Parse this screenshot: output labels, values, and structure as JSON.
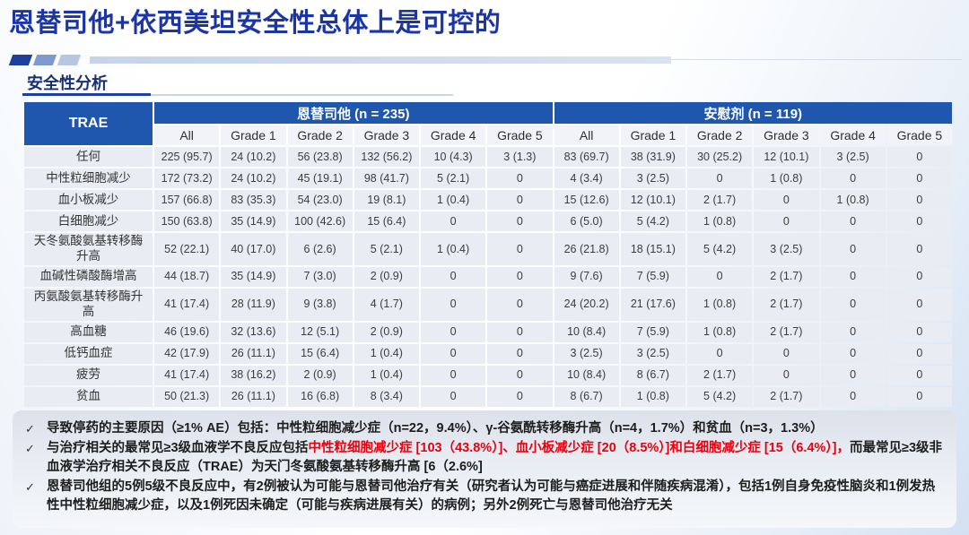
{
  "slide": {
    "title": "恩替司他+依西美坦安全性总体上是可控的",
    "section_title": "安全性分析"
  },
  "colors": {
    "title_blue": "#1c35a5",
    "table_header_blue": "#2057ae",
    "row_background": "#e9ecf3",
    "subheader_background": "#f1f3f8",
    "note_red": "#e8000f",
    "notes_panel_gray": "#e2e6ee"
  },
  "table": {
    "corner_label": "TRAE",
    "groups": [
      {
        "label": "恩替司他 (n = 235)"
      },
      {
        "label": "安慰剂 (n = 119)"
      }
    ],
    "sub_headers": [
      "All",
      "Grade 1",
      "Grade 2",
      "Grade 3",
      "Grade 4",
      "Grade 5"
    ],
    "rows": [
      {
        "label": "任何",
        "values": [
          "225 (95.7)",
          "24 (10.2)",
          "56 (23.8)",
          "132 (56.2)",
          "10 (4.3)",
          "3 (1.3)",
          "83 (69.7)",
          "38 (31.9)",
          "30 (25.2)",
          "12 (10.1)",
          "3 (2.5)",
          "0"
        ]
      },
      {
        "label": "中性粒细胞减少",
        "values": [
          "172 (73.2)",
          "24 (10.2)",
          "45 (19.1)",
          "98 (41.7)",
          "5 (2.1)",
          "0",
          "4 (3.4)",
          "3 (2.5)",
          "0",
          "1 (0.8)",
          "0",
          "0"
        ]
      },
      {
        "label": "血小板减少",
        "values": [
          "157 (66.8)",
          "83 (35.3)",
          "54 (23.0)",
          "19 (8.1)",
          "1 (0.4)",
          "0",
          "15 (12.6)",
          "12 (10.1)",
          "2 (1.7)",
          "0",
          "1 (0.8)",
          "0"
        ]
      },
      {
        "label": "白细胞减少",
        "values": [
          "150 (63.8)",
          "35 (14.9)",
          "100 (42.6)",
          "15 (6.4)",
          "0",
          "0",
          "6 (5.0)",
          "5 (4.2)",
          "1 (0.8)",
          "0",
          "0",
          "0"
        ]
      },
      {
        "label": "天冬氨酸氨基转移酶升高",
        "values": [
          "52 (22.1)",
          "40 (17.0)",
          "6 (2.6)",
          "5 (2.1)",
          "1 (0.4)",
          "0",
          "26 (21.8)",
          "18 (15.1)",
          "5 (4.2)",
          "3 (2.5)",
          "0",
          "0"
        ]
      },
      {
        "label": "血碱性磷酸酶增高",
        "values": [
          "44 (18.7)",
          "35 (14.9)",
          "7 (3.0)",
          "2 (0.9)",
          "0",
          "0",
          "9 (7.6)",
          "7 (5.9)",
          "0",
          "2 (1.7)",
          "0",
          "0"
        ]
      },
      {
        "label": "丙氨酸氨基转移酶升高",
        "values": [
          "41 (17.4)",
          "28 (11.9)",
          "9 (3.8)",
          "4 (1.7)",
          "0",
          "0",
          "24 (20.2)",
          "21 (17.6)",
          "1 (0.8)",
          "2 (1.7)",
          "0",
          "0"
        ]
      },
      {
        "label": "高血糖",
        "values": [
          "46 (19.6)",
          "32 (13.6)",
          "12 (5.1)",
          "2 (0.9)",
          "0",
          "0",
          "10 (8.4)",
          "7 (5.9)",
          "1 (0.8)",
          "2 (1.7)",
          "0",
          "0"
        ]
      },
      {
        "label": "低钙血症",
        "values": [
          "42 (17.9)",
          "26 (11.1)",
          "15 (6.4)",
          "1 (0.4)",
          "0",
          "0",
          "3 (2.5)",
          "3 (2.5)",
          "0",
          "0",
          "0",
          "0"
        ]
      },
      {
        "label": "疲劳",
        "values": [
          "41 (17.4)",
          "38 (16.2)",
          "2 (0.9)",
          "1 (0.4)",
          "0",
          "0",
          "10 (8.4)",
          "8 (6.7)",
          "2 (1.7)",
          "0",
          "0",
          "0"
        ]
      },
      {
        "label": "贫血",
        "values": [
          "50 (21.3)",
          "26 (11.1)",
          "16 (6.8)",
          "8 (3.4)",
          "0",
          "0",
          "8 (6.7)",
          "1 (0.8)",
          "5 (4.2)",
          "2 (1.7)",
          "0",
          "0"
        ]
      }
    ]
  },
  "notes": {
    "check_glyph": "✓",
    "items": [
      {
        "parts": [
          {
            "text": "导致停药的主要原因（≥1% AE）包括：中性粒细胞减少症（n=22，9.4%）、γ-谷氨酰转移酶升高（n=4，1.7%）和贫血（n=3，1.3%）",
            "red": false
          }
        ]
      },
      {
        "parts": [
          {
            "text": "与治疗相关的最常见≥3级血液学不良反应包括",
            "red": false
          },
          {
            "text": "中性粒细胞减少症 [103（43.8%）]、血小板减少症 [20（8.5%）]和白细胞减少症 [15（6.4%）]，",
            "red": true
          },
          {
            "text": "而最常见≥3级非血液学治疗相关不良反应（TRAE）为天门冬氨酸氨基转移酶升高 [6（2.6%]",
            "red": false
          }
        ]
      },
      {
        "parts": [
          {
            "text": "恩替司他组的5例5级不良反应中，有2例被认为可能与恩替司他治疗有关（研究者认为可能与癌症进展和伴随疾病混淆），包括1例自身免疫性脑炎和1例发热性中性粒细胞减少症，以及1例死因未确定（可能与疾病进展有关）的病例；另外2例死亡与恩替司他治疗无关",
            "red": false
          }
        ]
      }
    ]
  }
}
